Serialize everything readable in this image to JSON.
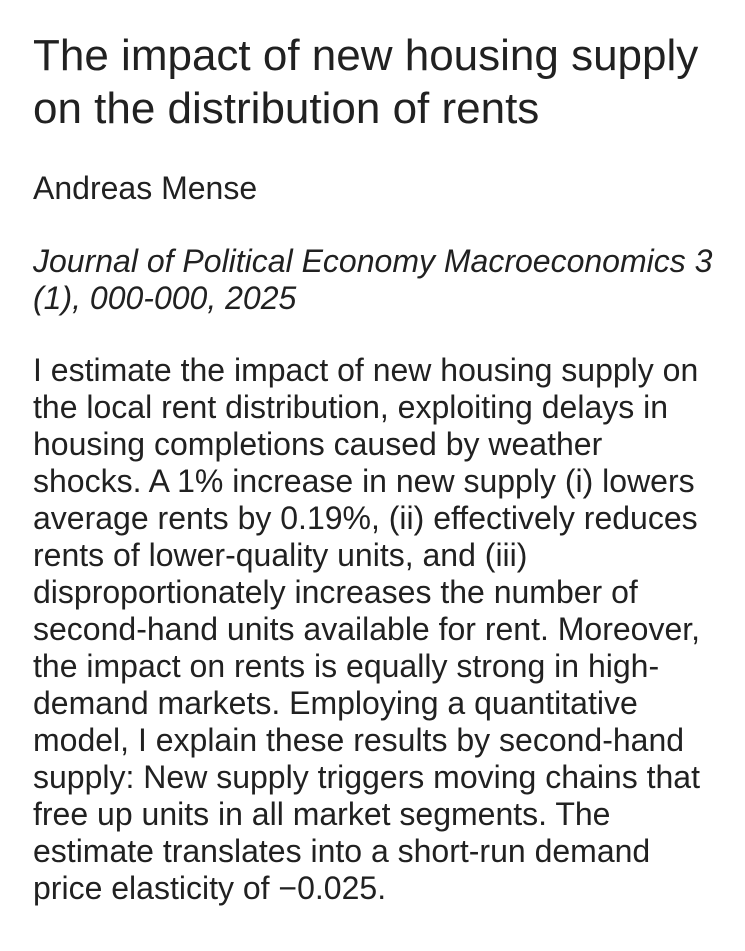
{
  "paper": {
    "title": "The impact of new housing supply on the distribution of rents",
    "authors": "Andreas Mense",
    "venue": "Journal of Political Economy Macroeconomics 3 (1), 000-000, 2025",
    "abstract": "I estimate the impact of new housing supply on the local rent distribution, exploiting delays in housing completions caused by weather shocks. A 1% increase in new supply (i) lowers average rents by 0.19%, (ii) effectively reduces rents of lower-quality units, and (iii) disproportionately increases the number of second-hand units available for rent. Moreover, the impact on rents is equally strong in high-demand markets. Employing a quantitative model, I explain these results by second-hand supply: New supply triggers moving chains that free up units in all market segments. The estimate translates into a short-run demand price elasticity of −0.025."
  },
  "colors": {
    "text": "#212121",
    "background": "#ffffff"
  }
}
